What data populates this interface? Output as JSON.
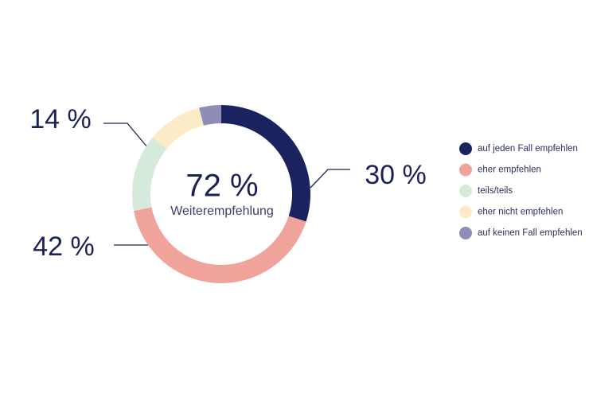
{
  "chart_data": {
    "type": "donut",
    "center_value": "72 %",
    "center_label": "Weiterempfehlung",
    "categories": [
      "auf jeden Fall empfehlen",
      "eher empfehlen",
      "teils/teils",
      "eher nicht empfehlen",
      "auf keinen Fall empfehlen"
    ],
    "values": [
      30,
      42,
      14,
      10,
      4
    ],
    "value_labels": [
      "30 %",
      "42 %",
      "14 %",
      null,
      null
    ],
    "colors": [
      "#1a2360",
      "#f0a39b",
      "#d5eadb",
      "#fdebc8",
      "#8e8db8"
    ]
  }
}
